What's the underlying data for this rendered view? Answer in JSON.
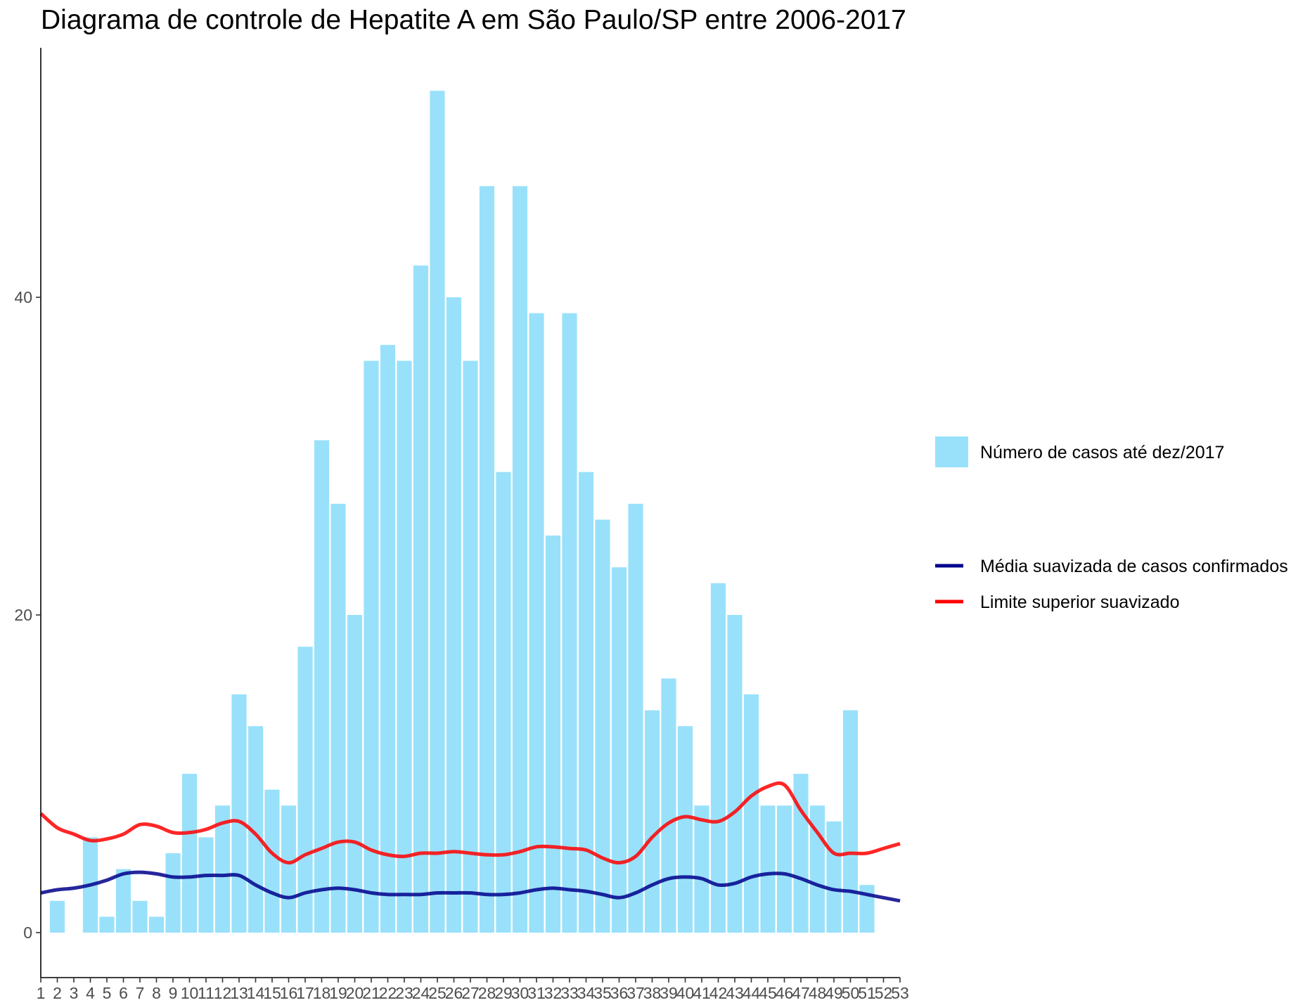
{
  "chart_data": {
    "type": "bar",
    "title": "Diagrama de controle de Hepatite A em São Paulo/SP entre 2006-2017",
    "xlabel": "",
    "ylabel": "",
    "categories": [
      "1",
      "2",
      "3",
      "4",
      "5",
      "6",
      "7",
      "8",
      "9",
      "10",
      "11",
      "12",
      "13",
      "14",
      "15",
      "16",
      "17",
      "18",
      "19",
      "20",
      "21",
      "22",
      "23",
      "24",
      "25",
      "26",
      "27",
      "28",
      "29",
      "30",
      "31",
      "32",
      "33",
      "34",
      "35",
      "36",
      "37",
      "38",
      "39",
      "40",
      "41",
      "42",
      "43",
      "44",
      "45",
      "46",
      "47",
      "48",
      "49",
      "50",
      "51",
      "52",
      "53"
    ],
    "ylim": [
      -2.8,
      57
    ],
    "yticks": [
      0,
      20,
      40
    ],
    "yticklabels": [
      "0",
      "20",
      "40"
    ],
    "grid": false,
    "legend_position": "right",
    "series": [
      {
        "name": "Número de casos até dez/2017",
        "kind": "bar",
        "color": "#99E1FA",
        "values": [
          null,
          2,
          null,
          6,
          1,
          4,
          2,
          1,
          5,
          10,
          6,
          8,
          15,
          13,
          9,
          8,
          18,
          31,
          27,
          20,
          36,
          37,
          36,
          42,
          53,
          40,
          36,
          47,
          29,
          47,
          39,
          25,
          39,
          29,
          26,
          23,
          27,
          14,
          16,
          13,
          8,
          22,
          20,
          15,
          8,
          8,
          10,
          8,
          7,
          14,
          3,
          null,
          null
        ]
      },
      {
        "name": "Média suavizada de casos confirmados",
        "kind": "line",
        "color": "#00008B",
        "values": [
          2.5,
          2.7,
          2.8,
          3.0,
          3.3,
          3.7,
          3.8,
          3.7,
          3.5,
          3.5,
          3.6,
          3.6,
          3.6,
          3.0,
          2.5,
          2.2,
          2.5,
          2.7,
          2.8,
          2.7,
          2.5,
          2.4,
          2.4,
          2.4,
          2.5,
          2.5,
          2.5,
          2.4,
          2.4,
          2.5,
          2.7,
          2.8,
          2.7,
          2.6,
          2.4,
          2.2,
          2.5,
          3.0,
          3.4,
          3.5,
          3.4,
          3.0,
          3.1,
          3.5,
          3.7,
          3.7,
          3.4,
          3.0,
          2.7,
          2.6,
          2.4,
          2.2,
          2.0
        ]
      },
      {
        "name": "Limite superior suavizado",
        "kind": "line",
        "color": "#FF0000",
        "values": [
          7.5,
          6.6,
          6.2,
          5.8,
          5.9,
          6.2,
          6.8,
          6.7,
          6.3,
          6.3,
          6.5,
          6.9,
          7.0,
          6.2,
          5.0,
          4.4,
          4.9,
          5.3,
          5.7,
          5.7,
          5.2,
          4.9,
          4.8,
          5.0,
          5.0,
          5.1,
          5.0,
          4.9,
          4.9,
          5.1,
          5.4,
          5.4,
          5.3,
          5.2,
          4.7,
          4.4,
          4.8,
          6.0,
          6.9,
          7.3,
          7.1,
          7.0,
          7.6,
          8.6,
          9.2,
          9.3,
          7.7,
          6.3,
          5.0,
          5.0,
          5.0,
          5.3,
          5.6
        ]
      }
    ]
  }
}
